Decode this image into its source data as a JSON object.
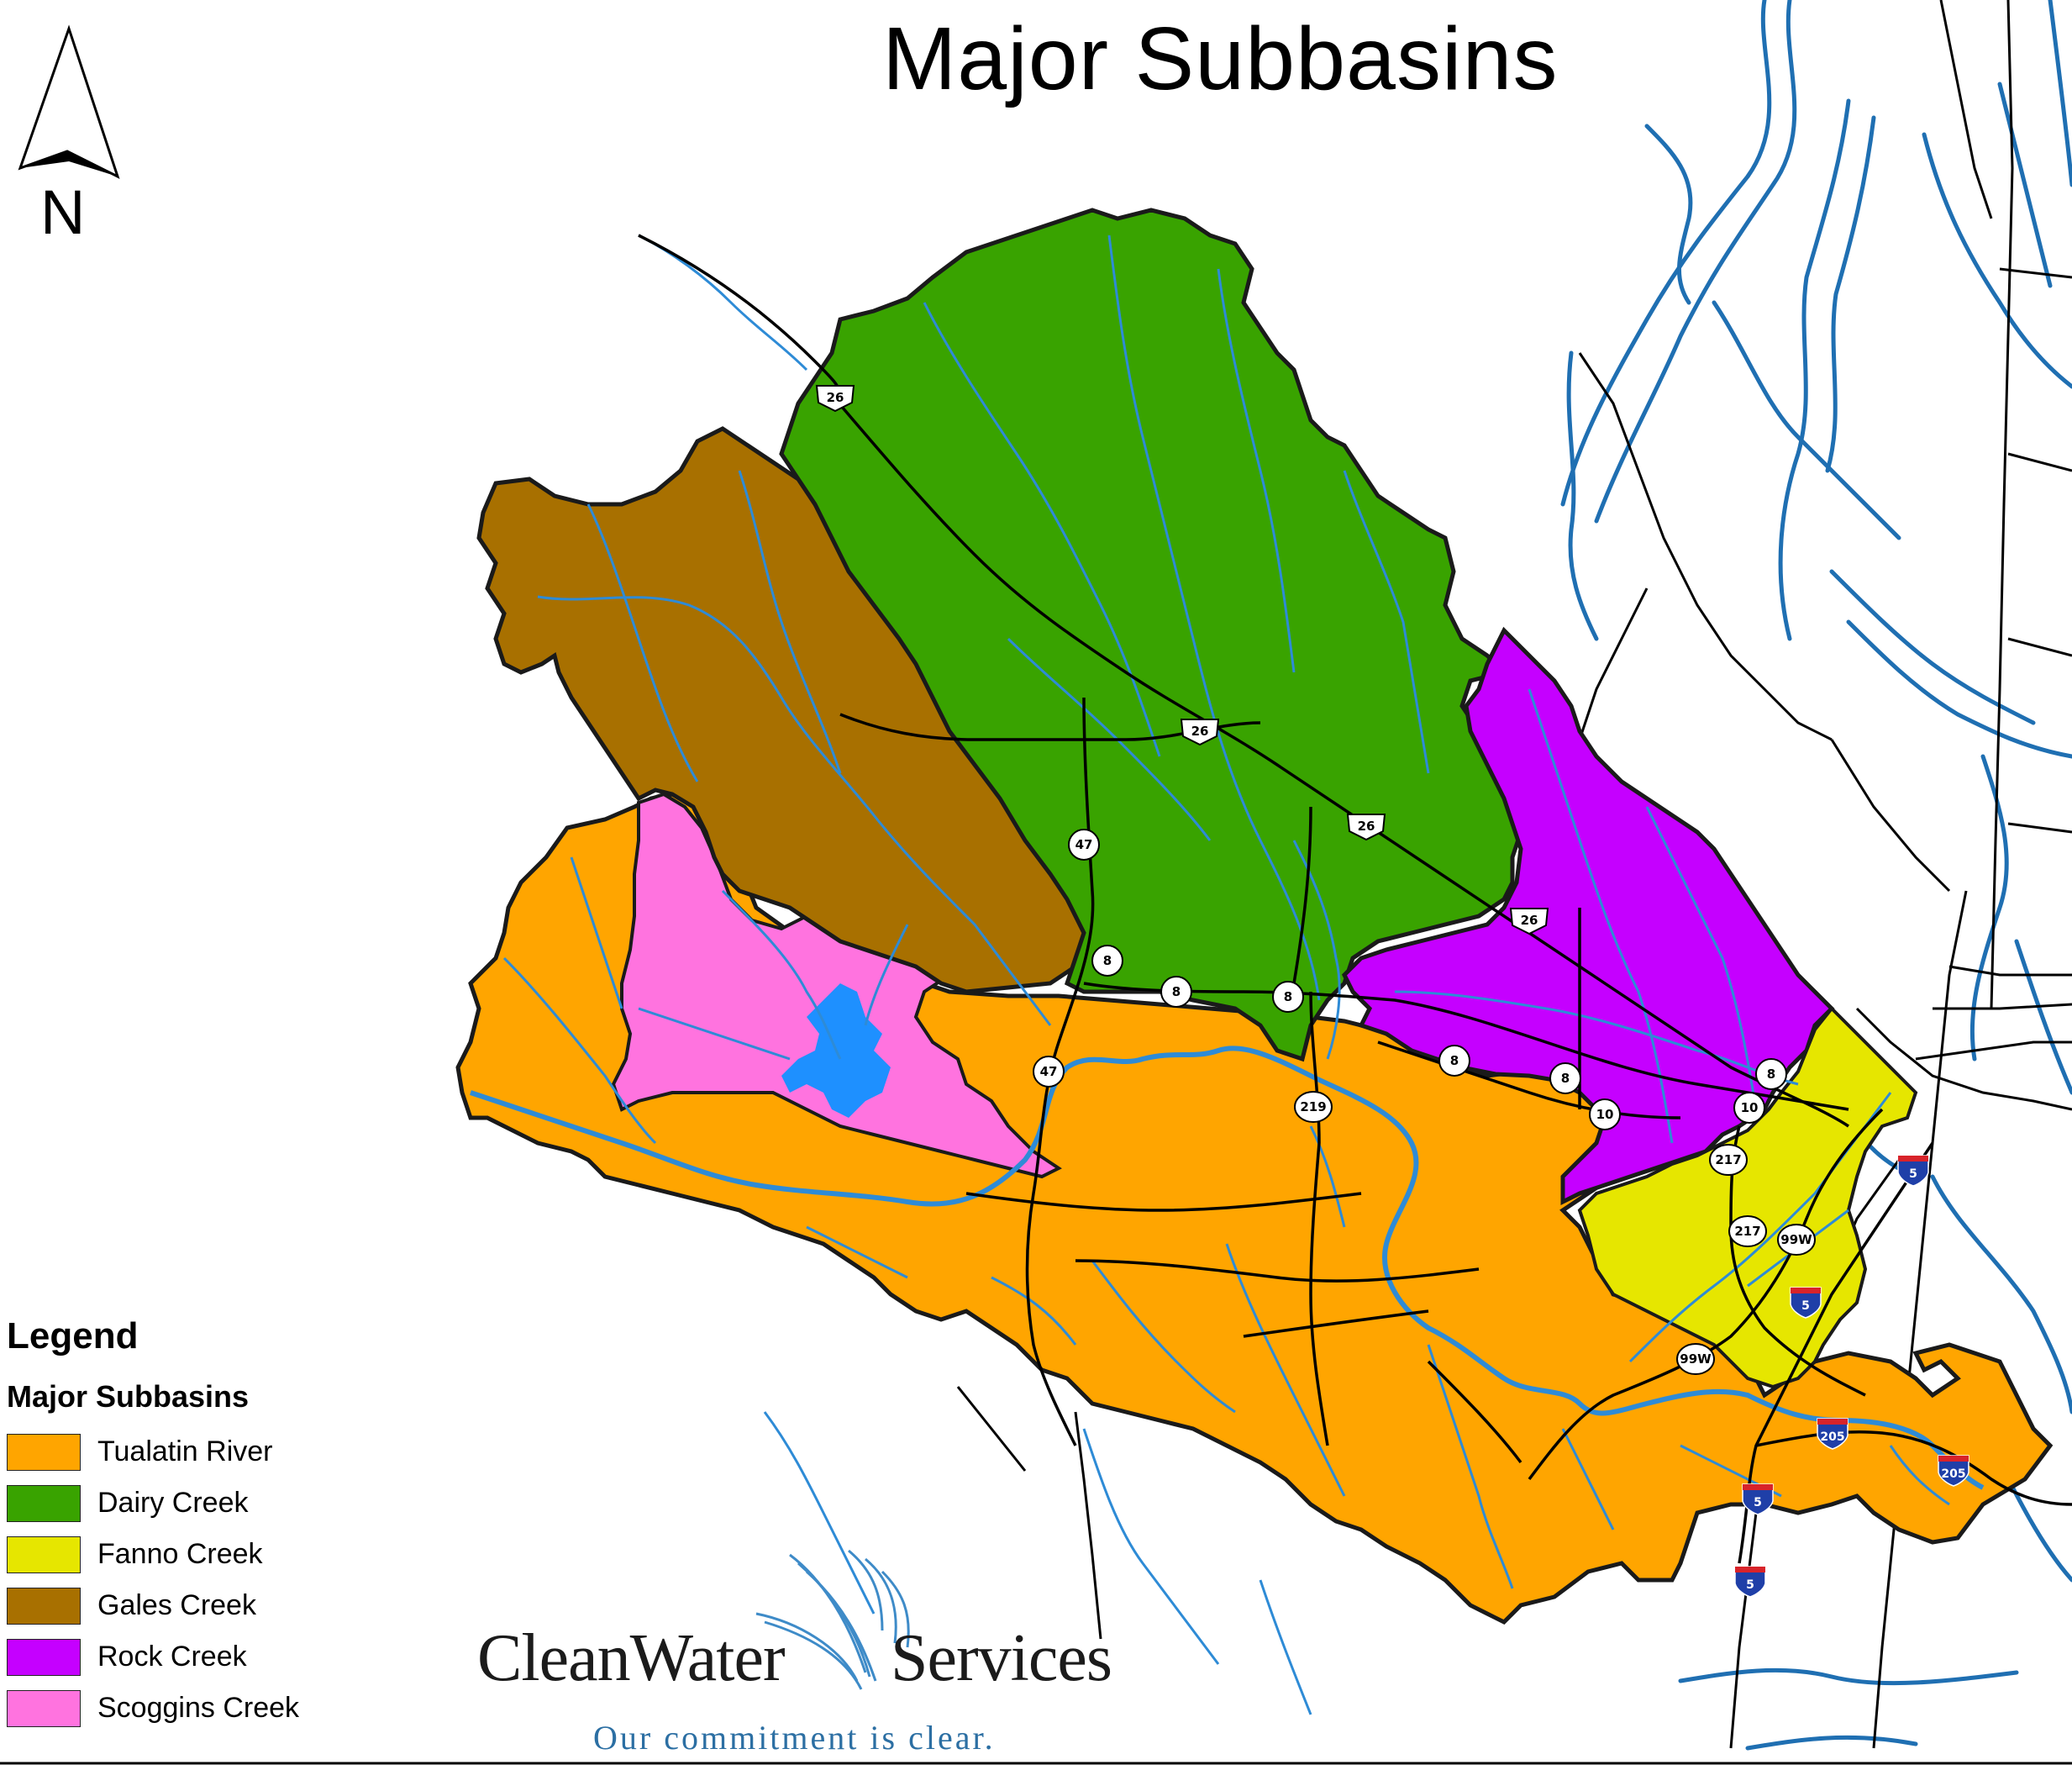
{
  "title": "Major Subbasins",
  "north_arrow": {
    "label": "N"
  },
  "legend": {
    "heading": "Legend",
    "subheading": "Major Subbasins",
    "items": [
      {
        "label": "Tualatin River",
        "color": "#FFA500"
      },
      {
        "label": "Dairy Creek",
        "color": "#39A300"
      },
      {
        "label": "Fanno Creek",
        "color": "#E6E600"
      },
      {
        "label": "Gales Creek",
        "color": "#A87000"
      },
      {
        "label": "Rock Creek",
        "color": "#C500FF"
      },
      {
        "label": "Scoggins Creek",
        "color": "#FF73DF"
      }
    ]
  },
  "colors": {
    "stream": "#2E8BD6",
    "reservoir": "#1E90FF",
    "river": "#1F6FB2",
    "road": "#000000",
    "boundary": "#1a1a1a"
  },
  "highways": [
    {
      "id": "us-26-a",
      "label": "26",
      "kind": "us"
    },
    {
      "id": "us-26-b",
      "label": "26",
      "kind": "us"
    },
    {
      "id": "us-26-c",
      "label": "26",
      "kind": "us"
    },
    {
      "id": "us-26-d",
      "label": "26",
      "kind": "us"
    },
    {
      "id": "or-47-a",
      "label": "47",
      "kind": "state"
    },
    {
      "id": "or-47-b",
      "label": "47",
      "kind": "state"
    },
    {
      "id": "or-8-a",
      "label": "8",
      "kind": "state"
    },
    {
      "id": "or-8-b",
      "label": "8",
      "kind": "state"
    },
    {
      "id": "or-8-c",
      "label": "8",
      "kind": "state"
    },
    {
      "id": "or-8-d",
      "label": "8",
      "kind": "state"
    },
    {
      "id": "or-8-e",
      "label": "8",
      "kind": "state"
    },
    {
      "id": "or-8-f",
      "label": "8",
      "kind": "state"
    },
    {
      "id": "or-219",
      "label": "219",
      "kind": "state"
    },
    {
      "id": "or-10-a",
      "label": "10",
      "kind": "state"
    },
    {
      "id": "or-10-b",
      "label": "10",
      "kind": "state"
    },
    {
      "id": "or-217-a",
      "label": "217",
      "kind": "state"
    },
    {
      "id": "or-217-b",
      "label": "217",
      "kind": "state"
    },
    {
      "id": "us-99w-a",
      "label": "99W",
      "kind": "state"
    },
    {
      "id": "us-99w-b",
      "label": "99W",
      "kind": "state"
    },
    {
      "id": "i-5-a",
      "label": "5",
      "kind": "interstate"
    },
    {
      "id": "i-5-b",
      "label": "5",
      "kind": "interstate"
    },
    {
      "id": "i-5-c",
      "label": "5",
      "kind": "interstate"
    },
    {
      "id": "i-5-d",
      "label": "5",
      "kind": "interstate"
    },
    {
      "id": "i-205-a",
      "label": "205",
      "kind": "interstate"
    },
    {
      "id": "i-205-b",
      "label": "205",
      "kind": "interstate"
    }
  ],
  "brand": {
    "name_part1": "CleanWater",
    "name_part2": "Services",
    "tagline": "Our commitment is clear."
  }
}
